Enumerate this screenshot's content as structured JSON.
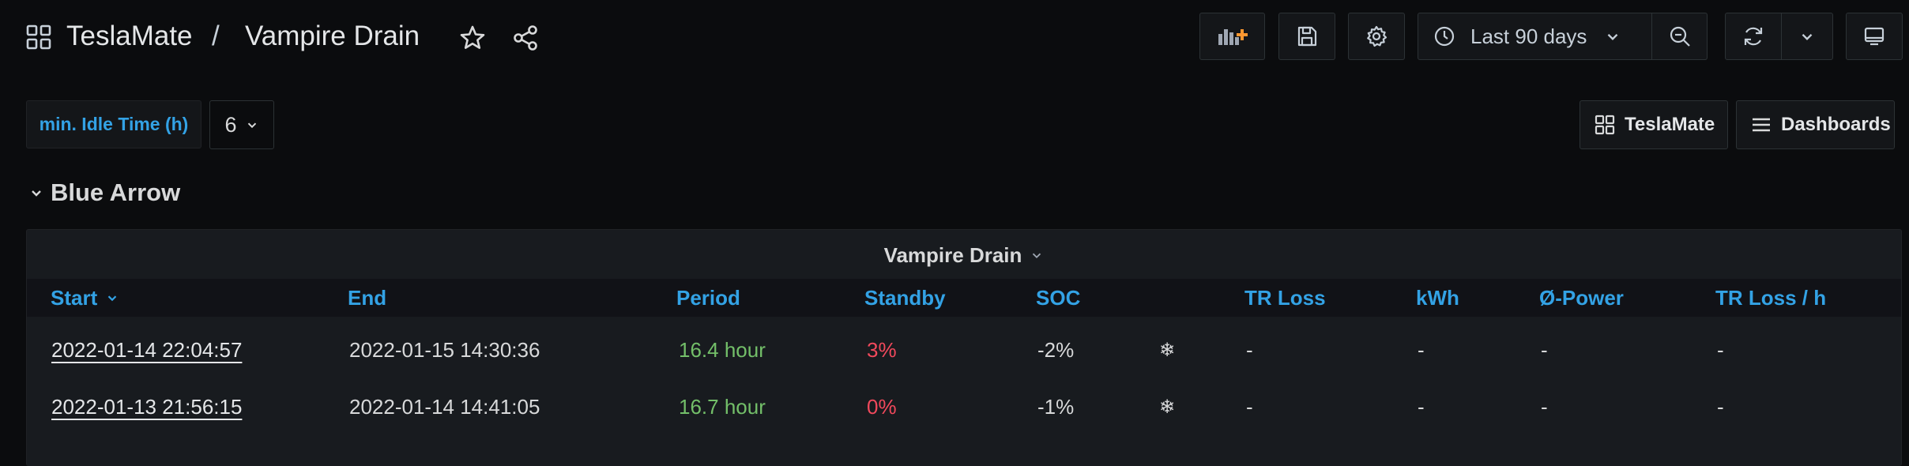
{
  "nav": {
    "breadcrumb_root": "TeslaMate",
    "breadcrumb_separator": "/",
    "dashboard_title": "Vampire Drain"
  },
  "toolbar": {
    "time_range_label": "Last 90 days"
  },
  "variables": {
    "idle_label": "min. Idle Time (h)",
    "idle_value": "6"
  },
  "links": {
    "teslamate": "TeslaMate",
    "dashboards": "Dashboards"
  },
  "row": {
    "title": "Blue Arrow"
  },
  "panel": {
    "title": "Vampire Drain",
    "columns": [
      "Start",
      "End",
      "Period",
      "Standby",
      "SOC",
      "TR Loss",
      "kWh",
      "Ø-Power",
      "TR Loss / h"
    ],
    "rows": [
      {
        "start": "2022-01-14 22:04:57",
        "end": "2022-01-15 14:30:36",
        "period": "16.4 hour",
        "standby": "3%",
        "soc": "-2%",
        "climate_icon": "❄",
        "tr_loss": "-",
        "kwh": "-",
        "power": "-",
        "tr_loss_h": "-"
      },
      {
        "start": "2022-01-13 21:56:15",
        "end": "2022-01-14 14:41:05",
        "period": "16.7 hour",
        "standby": "0%",
        "soc": "-1%",
        "climate_icon": "❄",
        "tr_loss": "-",
        "kwh": "-",
        "power": "-",
        "tr_loss_h": "-"
      }
    ]
  },
  "colors": {
    "background": "#0b0c0e",
    "panel": "#181b1f",
    "accent_blue": "#33a2e5",
    "value_green": "#73bf69",
    "value_red": "#f2495c"
  },
  "icons": [
    "apps-icon",
    "star-icon",
    "share-icon",
    "add-panel-icon",
    "save-icon",
    "settings-icon",
    "clock-icon",
    "chevron-down-icon",
    "zoom-out-icon",
    "refresh-icon",
    "tv-monitor-icon",
    "grid-icon",
    "list-icon",
    "snowflake-icon"
  ]
}
